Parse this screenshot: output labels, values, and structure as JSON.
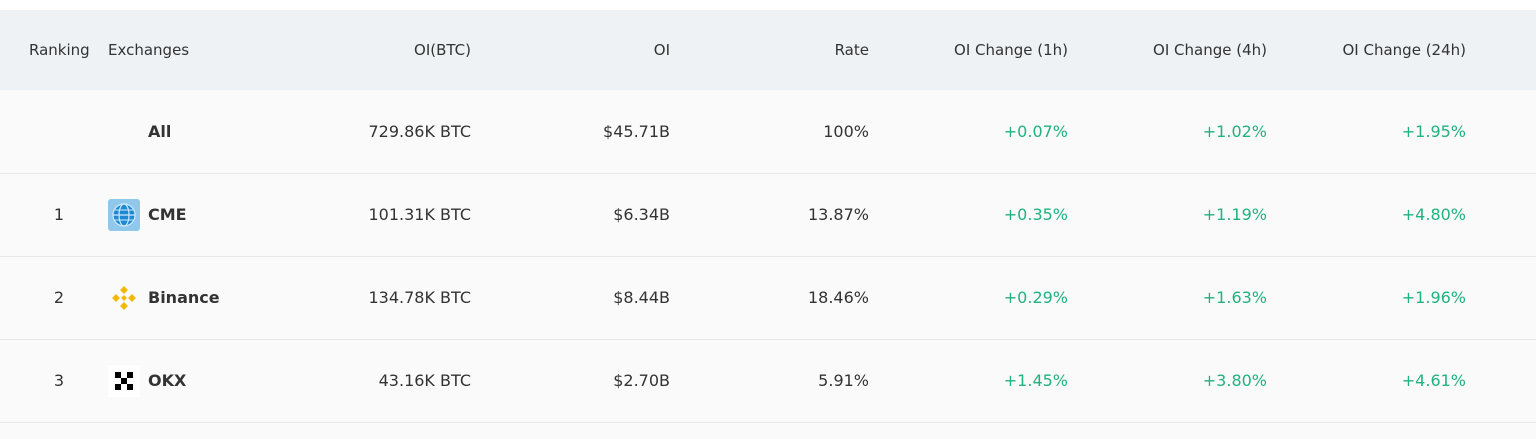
{
  "table": {
    "headers": [
      "Ranking",
      "Exchanges",
      "OI(BTC)",
      "OI",
      "Rate",
      "OI Change (1h)",
      "OI Change (4h)",
      "OI Change (24h)"
    ],
    "rows": [
      {
        "exchange": "All",
        "oi_btc": "729.86K BTC",
        "oi": "$45.71B",
        "rate": "100%",
        "change_1h": "+0.07%",
        "change_4h": "+1.02%",
        "change_24h": "+1.95%"
      },
      {
        "ranking": "1",
        "exchange": "CME",
        "oi_btc": "101.31K BTC",
        "oi": "$6.34B",
        "rate": "13.87%",
        "change_1h": "+0.35%",
        "change_4h": "+1.19%",
        "change_24h": "+4.80%"
      },
      {
        "ranking": "2",
        "exchange": "Binance",
        "oi_btc": "134.78K BTC",
        "oi": "$8.44B",
        "rate": "18.46%",
        "change_1h": "+0.29%",
        "change_4h": "+1.63%",
        "change_24h": "+1.96%"
      },
      {
        "ranking": "3",
        "exchange": "OKX",
        "oi_btc": "43.16K BTC",
        "oi": "$2.70B",
        "rate": "5.91%",
        "change_1h": "+1.45%",
        "change_4h": "+3.80%",
        "change_24h": "+4.61%"
      }
    ]
  }
}
